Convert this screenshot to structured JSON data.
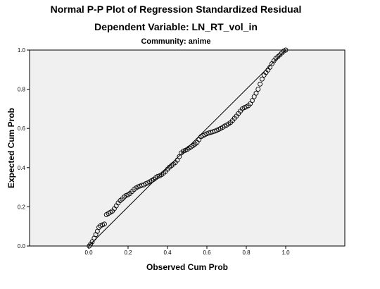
{
  "chart_data": {
    "type": "scatter",
    "title": "Normal P-P Plot of Regression Standardized Residual",
    "subtitle": "Dependent Variable: LN_RT_vol_in",
    "panel_title": "Community: anime",
    "xlabel": "Observed Cum Prob",
    "ylabel": "Expected Cum Prob",
    "xlim": [
      -0.3,
      1.3
    ],
    "ylim": [
      0.0,
      1.0
    ],
    "x_ticks": [
      "0.0",
      "0.2",
      "0.4",
      "0.6",
      "0.8",
      "1.0"
    ],
    "y_ticks": [
      "0.0",
      "0.2",
      "0.4",
      "0.6",
      "0.8",
      "1.0"
    ],
    "grid": false,
    "reference_line": {
      "from": [
        0.0,
        0.0
      ],
      "to": [
        1.0,
        1.0
      ]
    },
    "series": [
      {
        "points": [
          [
            0.003,
            0.0
          ],
          [
            0.01,
            0.01
          ],
          [
            0.018,
            0.022
          ],
          [
            0.028,
            0.04
          ],
          [
            0.036,
            0.058
          ],
          [
            0.044,
            0.075
          ],
          [
            0.052,
            0.095
          ],
          [
            0.06,
            0.103
          ],
          [
            0.07,
            0.108
          ],
          [
            0.08,
            0.112
          ],
          [
            0.09,
            0.16
          ],
          [
            0.1,
            0.166
          ],
          [
            0.11,
            0.172
          ],
          [
            0.12,
            0.178
          ],
          [
            0.13,
            0.19
          ],
          [
            0.14,
            0.205
          ],
          [
            0.15,
            0.22
          ],
          [
            0.16,
            0.232
          ],
          [
            0.17,
            0.24
          ],
          [
            0.18,
            0.25
          ],
          [
            0.19,
            0.258
          ],
          [
            0.2,
            0.262
          ],
          [
            0.21,
            0.268
          ],
          [
            0.22,
            0.278
          ],
          [
            0.23,
            0.288
          ],
          [
            0.24,
            0.296
          ],
          [
            0.25,
            0.302
          ],
          [
            0.26,
            0.306
          ],
          [
            0.27,
            0.31
          ],
          [
            0.28,
            0.312
          ],
          [
            0.29,
            0.318
          ],
          [
            0.3,
            0.322
          ],
          [
            0.31,
            0.328
          ],
          [
            0.32,
            0.334
          ],
          [
            0.33,
            0.34
          ],
          [
            0.34,
            0.348
          ],
          [
            0.35,
            0.355
          ],
          [
            0.36,
            0.358
          ],
          [
            0.37,
            0.364
          ],
          [
            0.38,
            0.372
          ],
          [
            0.39,
            0.38
          ],
          [
            0.4,
            0.392
          ],
          [
            0.41,
            0.402
          ],
          [
            0.42,
            0.41
          ],
          [
            0.43,
            0.418
          ],
          [
            0.44,
            0.426
          ],
          [
            0.45,
            0.438
          ],
          [
            0.46,
            0.456
          ],
          [
            0.47,
            0.475
          ],
          [
            0.48,
            0.484
          ],
          [
            0.49,
            0.488
          ],
          [
            0.5,
            0.493
          ],
          [
            0.51,
            0.5
          ],
          [
            0.52,
            0.506
          ],
          [
            0.53,
            0.513
          ],
          [
            0.54,
            0.52
          ],
          [
            0.55,
            0.528
          ],
          [
            0.56,
            0.543
          ],
          [
            0.57,
            0.558
          ],
          [
            0.58,
            0.563
          ],
          [
            0.59,
            0.568
          ],
          [
            0.6,
            0.573
          ],
          [
            0.61,
            0.577
          ],
          [
            0.62,
            0.58
          ],
          [
            0.63,
            0.583
          ],
          [
            0.64,
            0.586
          ],
          [
            0.65,
            0.59
          ],
          [
            0.66,
            0.595
          ],
          [
            0.67,
            0.6
          ],
          [
            0.68,
            0.606
          ],
          [
            0.69,
            0.612
          ],
          [
            0.7,
            0.617
          ],
          [
            0.71,
            0.623
          ],
          [
            0.72,
            0.63
          ],
          [
            0.73,
            0.64
          ],
          [
            0.74,
            0.652
          ],
          [
            0.75,
            0.663
          ],
          [
            0.76,
            0.676
          ],
          [
            0.77,
            0.688
          ],
          [
            0.78,
            0.7
          ],
          [
            0.79,
            0.706
          ],
          [
            0.8,
            0.71
          ],
          [
            0.81,
            0.716
          ],
          [
            0.82,
            0.726
          ],
          [
            0.83,
            0.742
          ],
          [
            0.84,
            0.762
          ],
          [
            0.85,
            0.78
          ],
          [
            0.86,
            0.8
          ],
          [
            0.87,
            0.826
          ],
          [
            0.88,
            0.852
          ],
          [
            0.89,
            0.872
          ],
          [
            0.9,
            0.885
          ],
          [
            0.91,
            0.898
          ],
          [
            0.92,
            0.912
          ],
          [
            0.93,
            0.93
          ],
          [
            0.94,
            0.945
          ],
          [
            0.95,
            0.958
          ],
          [
            0.96,
            0.966
          ],
          [
            0.97,
            0.975
          ],
          [
            0.98,
            0.985
          ],
          [
            0.99,
            0.995
          ],
          [
            1.0,
            1.0
          ]
        ]
      }
    ]
  },
  "colors": {
    "plot_background": "#f0f0f0",
    "frame": "#000000",
    "marker_stroke": "#000000",
    "reference_line": "#000000"
  }
}
